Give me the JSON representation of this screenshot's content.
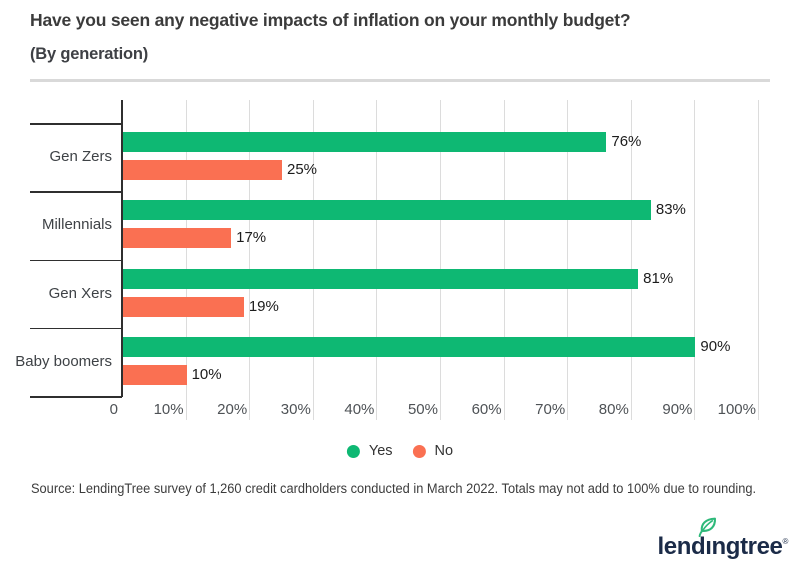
{
  "header": {
    "title": "Have you seen any negative impacts of inflation on your monthly budget?",
    "subtitle": "(By generation)"
  },
  "chart_data": {
    "type": "bar",
    "orientation": "horizontal",
    "title": "Have you seen any negative impacts of inflation on your monthly budget?",
    "subtitle": "(By generation)",
    "categories": [
      "Gen Zers",
      "Millennials",
      "Gen Xers",
      "Baby boomers"
    ],
    "series": [
      {
        "name": "Yes",
        "color": "#0eb873",
        "values": [
          76,
          83,
          81,
          90
        ]
      },
      {
        "name": "No",
        "color": "#fa7052",
        "values": [
          25,
          17,
          19,
          10
        ]
      }
    ],
    "value_suffix": "%",
    "xlim": [
      0,
      100
    ],
    "x_ticks": [
      "0",
      "10%",
      "20%",
      "30%",
      "40%",
      "50%",
      "60%",
      "70%",
      "80%",
      "90%",
      "100%"
    ],
    "grid": "vertical gridlines every 10%",
    "legend_position": "bottom",
    "data_labels": "shown at end of each bar"
  },
  "footer": {
    "source": "Source: LendingTree survey of 1,260 credit cardholders conducted in March 2022. Totals may not add to 100% due to rounding.",
    "logo": {
      "text": "lendingtree",
      "registered": "®",
      "navy": "#1b2b48",
      "green": "#2eb97a"
    }
  },
  "colors": {
    "yes": "#0eb873",
    "no": "#fa7052",
    "axis": "#2f2f2f",
    "gridline": "#dcdcdc",
    "divider": "#d9d9d9",
    "title_text": "#3b3b3b"
  }
}
